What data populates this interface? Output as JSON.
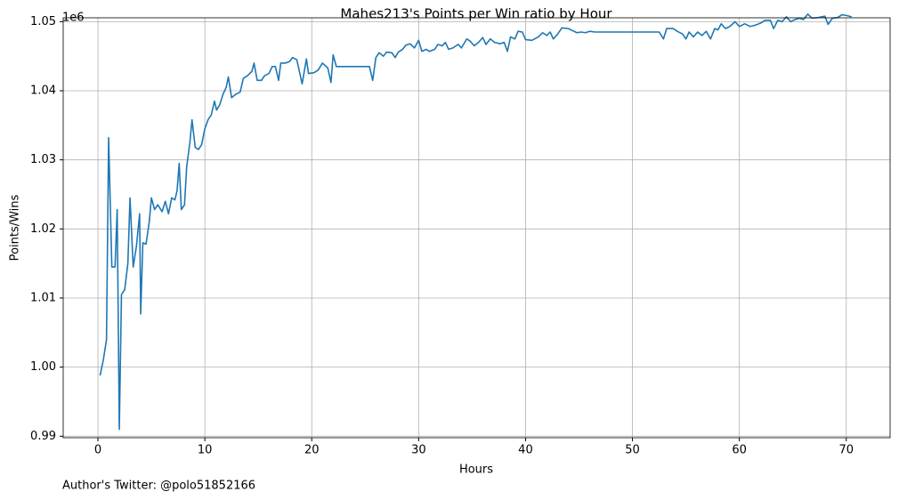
{
  "chart_data": {
    "type": "line",
    "title": "Mahes213's Points per Win ratio by Hour",
    "x_label": "Hours",
    "y_label": "Points/Wins",
    "y_offset_text": "1e6",
    "annotation": "Author's Twitter: @polo51852166",
    "color": "#1f77b4",
    "grid": true,
    "xlim": [
      -3.25,
      74.1
    ],
    "ylim": [
      989780,
      1050560
    ],
    "xticks": [
      0,
      10,
      20,
      30,
      40,
      50,
      60,
      70
    ],
    "yticks": [
      {
        "value": 990000,
        "label": "0.99"
      },
      {
        "value": 1000000,
        "label": "1.00"
      },
      {
        "value": 1010000,
        "label": "1.01"
      },
      {
        "value": 1020000,
        "label": "1.02"
      },
      {
        "value": 1030000,
        "label": "1.03"
      },
      {
        "value": 1040000,
        "label": "1.04"
      },
      {
        "value": 1050000,
        "label": "1.05"
      }
    ],
    "x": [
      0.2,
      0.5,
      0.8,
      1.0,
      1.3,
      1.6,
      1.8,
      2.0,
      2.2,
      2.5,
      2.8,
      3.0,
      3.3,
      3.6,
      3.9,
      4.0,
      4.2,
      4.5,
      4.8,
      5.0,
      5.3,
      5.6,
      6.0,
      6.3,
      6.6,
      6.9,
      7.2,
      7.4,
      7.6,
      7.8,
      8.1,
      8.3,
      8.6,
      8.8,
      9.1,
      9.4,
      9.7,
      10.0,
      10.3,
      10.6,
      10.9,
      11.1,
      11.4,
      11.7,
      12.0,
      12.2,
      12.5,
      12.9,
      13.3,
      13.6,
      14.0,
      14.4,
      14.6,
      14.9,
      15.3,
      15.6,
      16.0,
      16.3,
      16.6,
      16.9,
      17.1,
      17.5,
      17.9,
      18.2,
      18.6,
      19.1,
      19.5,
      19.7,
      20.2,
      20.6,
      21.0,
      21.5,
      21.8,
      22.0,
      22.3,
      25.4,
      25.7,
      26.0,
      26.3,
      26.7,
      27.0,
      27.5,
      27.8,
      28.1,
      28.5,
      28.8,
      29.2,
      29.6,
      30.0,
      30.3,
      30.7,
      31.0,
      31.5,
      31.8,
      32.2,
      32.5,
      32.8,
      33.2,
      33.7,
      34.0,
      34.5,
      34.8,
      35.2,
      35.6,
      36.0,
      36.3,
      36.7,
      37.1,
      37.6,
      38.0,
      38.3,
      38.6,
      39.0,
      39.3,
      39.7,
      40.0,
      40.6,
      41.2,
      41.6,
      42.0,
      42.3,
      42.6,
      43.0,
      43.4,
      44.0,
      44.4,
      44.8,
      45.2,
      45.6,
      46.0,
      46.5,
      52.5,
      52.9,
      53.2,
      53.8,
      54.2,
      54.7,
      55.0,
      55.3,
      55.7,
      56.1,
      56.5,
      56.9,
      57.3,
      57.7,
      58.0,
      58.3,
      58.7,
      59.1,
      59.6,
      60.0,
      60.5,
      61.0,
      61.5,
      62.0,
      62.4,
      62.9,
      63.2,
      63.6,
      64.0,
      64.4,
      64.8,
      65.2,
      65.6,
      66.0,
      66.4,
      66.8,
      67.4,
      68.0,
      68.3,
      68.7,
      69.2,
      69.6,
      70.0,
      70.5
    ],
    "values": [
      998800,
      1001000,
      1004000,
      1033200,
      1014500,
      1014500,
      1022800,
      991000,
      1010500,
      1011200,
      1015000,
      1024500,
      1014500,
      1017500,
      1022200,
      1007700,
      1018000,
      1017800,
      1021000,
      1024500,
      1022800,
      1023500,
      1022500,
      1024000,
      1022200,
      1024500,
      1024200,
      1025500,
      1029500,
      1022800,
      1023500,
      1029000,
      1032500,
      1035800,
      1031800,
      1031500,
      1032200,
      1034500,
      1035800,
      1036500,
      1038500,
      1037200,
      1038000,
      1039500,
      1040500,
      1042000,
      1039000,
      1039500,
      1039800,
      1041800,
      1042200,
      1042800,
      1044000,
      1041500,
      1041500,
      1042200,
      1042500,
      1043500,
      1043500,
      1041500,
      1044000,
      1044000,
      1044200,
      1044800,
      1044500,
      1041000,
      1044600,
      1042500,
      1042600,
      1043000,
      1044000,
      1043300,
      1041200,
      1045200,
      1043500,
      1043500,
      1041500,
      1044800,
      1045500,
      1045000,
      1045600,
      1045500,
      1044800,
      1045600,
      1046000,
      1046600,
      1046800,
      1046200,
      1047300,
      1045700,
      1046000,
      1045700,
      1046000,
      1046700,
      1046500,
      1047000,
      1046000,
      1046200,
      1046700,
      1046200,
      1047500,
      1047200,
      1046500,
      1047000,
      1047700,
      1046700,
      1047500,
      1047000,
      1046800,
      1047000,
      1045700,
      1047800,
      1047500,
      1048600,
      1048500,
      1047400,
      1047300,
      1047800,
      1048400,
      1048000,
      1048500,
      1047500,
      1048200,
      1049100,
      1049000,
      1048700,
      1048400,
      1048500,
      1048400,
      1048600,
      1048500,
      1048500,
      1047500,
      1049000,
      1049000,
      1048600,
      1048200,
      1047500,
      1048500,
      1047800,
      1048500,
      1048000,
      1048600,
      1047500,
      1049000,
      1048800,
      1049700,
      1049000,
      1049300,
      1050000,
      1049300,
      1049700,
      1049300,
      1049500,
      1049800,
      1050200,
      1050200,
      1049000,
      1050200,
      1050000,
      1050700,
      1050000,
      1050300,
      1050500,
      1050300,
      1051100,
      1050500,
      1050600,
      1050800,
      1049600,
      1050500,
      1050600,
      1051000,
      1050900,
      1050700
    ]
  }
}
